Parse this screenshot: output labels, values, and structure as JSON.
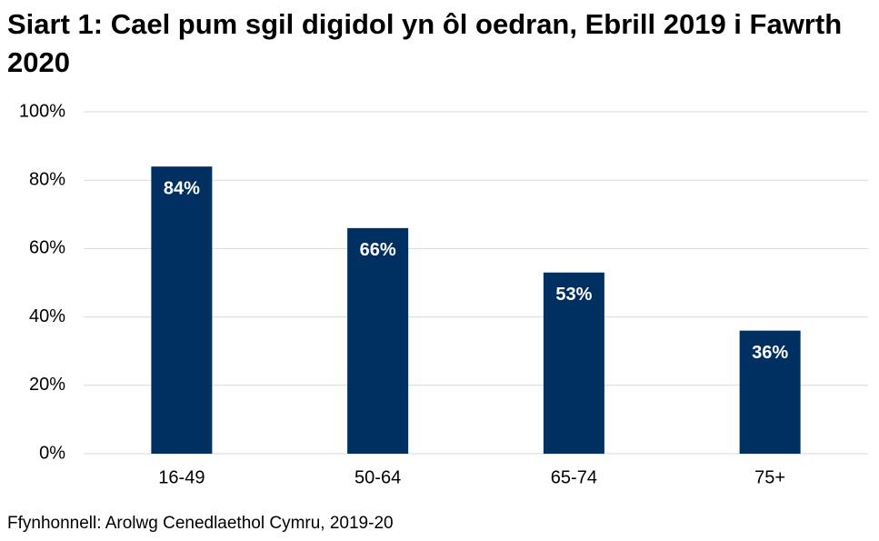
{
  "chart_data": {
    "type": "bar",
    "title": "Siart 1: Cael pum sgil digidol yn ôl oedran, Ebrill 2019 i Fawrth 2020",
    "source": "Ffynhonnell: Arolwg Cenedlaethol Cymru, 2019-20",
    "categories": [
      "16-49",
      "50-64",
      "65-74",
      "75+"
    ],
    "values": [
      84,
      66,
      53,
      36
    ],
    "value_labels": [
      "84%",
      "66%",
      "53%",
      "36%"
    ],
    "color": "#002f62",
    "ylim": [
      0,
      100
    ],
    "yticks": [
      {
        "value": 0,
        "label": "0%"
      },
      {
        "value": 20,
        "label": "20%"
      },
      {
        "value": 40,
        "label": "40%"
      },
      {
        "value": 60,
        "label": "60%"
      },
      {
        "value": 80,
        "label": "80%"
      },
      {
        "value": 100,
        "label": "100%"
      }
    ],
    "grid": true
  }
}
